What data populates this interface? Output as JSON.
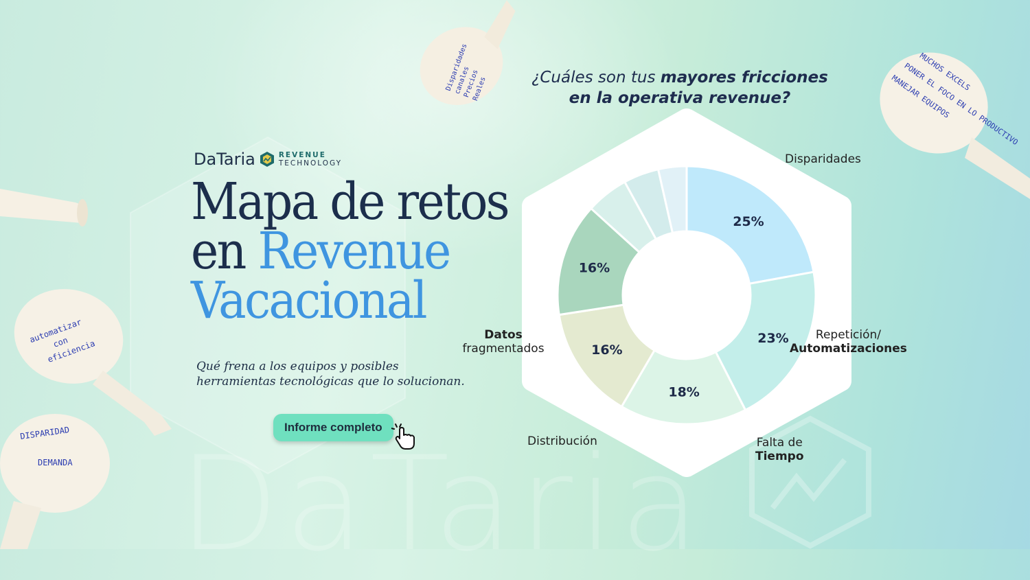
{
  "logo": {
    "brand": "DaTaria",
    "product_line1": "REVENUE",
    "product_line2": "TECHNOLOGY"
  },
  "hero": {
    "title_line1": "Mapa de retos",
    "title_line2_prefix": "en ",
    "title_line2_accent": "Revenue",
    "title_line3_accent": "Vacacional",
    "subtitle_line1": "Qué frena a los equipos y posibles",
    "subtitle_line2": "herramientas tecnológicas que lo solucionan.",
    "cta_label": "Informe completo"
  },
  "watermark_text": "DaTaria",
  "question": {
    "prefix": "¿Cuáles son tus ",
    "bold1": "mayores fricciones",
    "bold2": "en la operativa revenue?"
  },
  "labels": {
    "disparidades": "Disparidades",
    "repeticion_1": "Repetición/",
    "repeticion_2": "Automatizaciones",
    "falta_1": "Falta de",
    "falta_2": "Tiempo",
    "distribucion": "Distribución",
    "datos_1": "Datos",
    "datos_2": "fragmentados"
  },
  "balloon_notes": {
    "top_center": [
      "Disparidades",
      "canales",
      "Precios",
      "Reales"
    ],
    "top_right": [
      "MUCHOS EXCELS",
      "PONER EL FOCO EN LO PRODUCTIVO",
      "MANEJAR EQUIPOS"
    ],
    "left_mid": [
      "automatizar",
      "con",
      "eficiencia"
    ],
    "left_bottom": [
      "DISPARIDAD",
      "DEMANDA"
    ]
  },
  "colors": {
    "accent_blue": "#3f95e0",
    "navy": "#1c2e4c",
    "cta_green": "#6fe0bf"
  },
  "chart_data": {
    "type": "pie",
    "donut": true,
    "slices": [
      {
        "value": 25,
        "label": "25%",
        "color": "#bfe9fb"
      },
      {
        "value": 23,
        "label": "23%",
        "color": "#c3eeea"
      },
      {
        "value": 18,
        "label": "18%",
        "color": "#dcf4e7"
      },
      {
        "value": 16,
        "label": "16%",
        "color": "#e4ead0"
      },
      {
        "value": 16,
        "label": "16%",
        "color": "#a9d6bd"
      },
      {
        "value": 6,
        "label": "",
        "color": "#d8f0eb"
      },
      {
        "value": 5,
        "label": "",
        "color": "#d3ecec"
      },
      {
        "value": 4,
        "label": "",
        "color": "#e1f1f7"
      }
    ]
  }
}
